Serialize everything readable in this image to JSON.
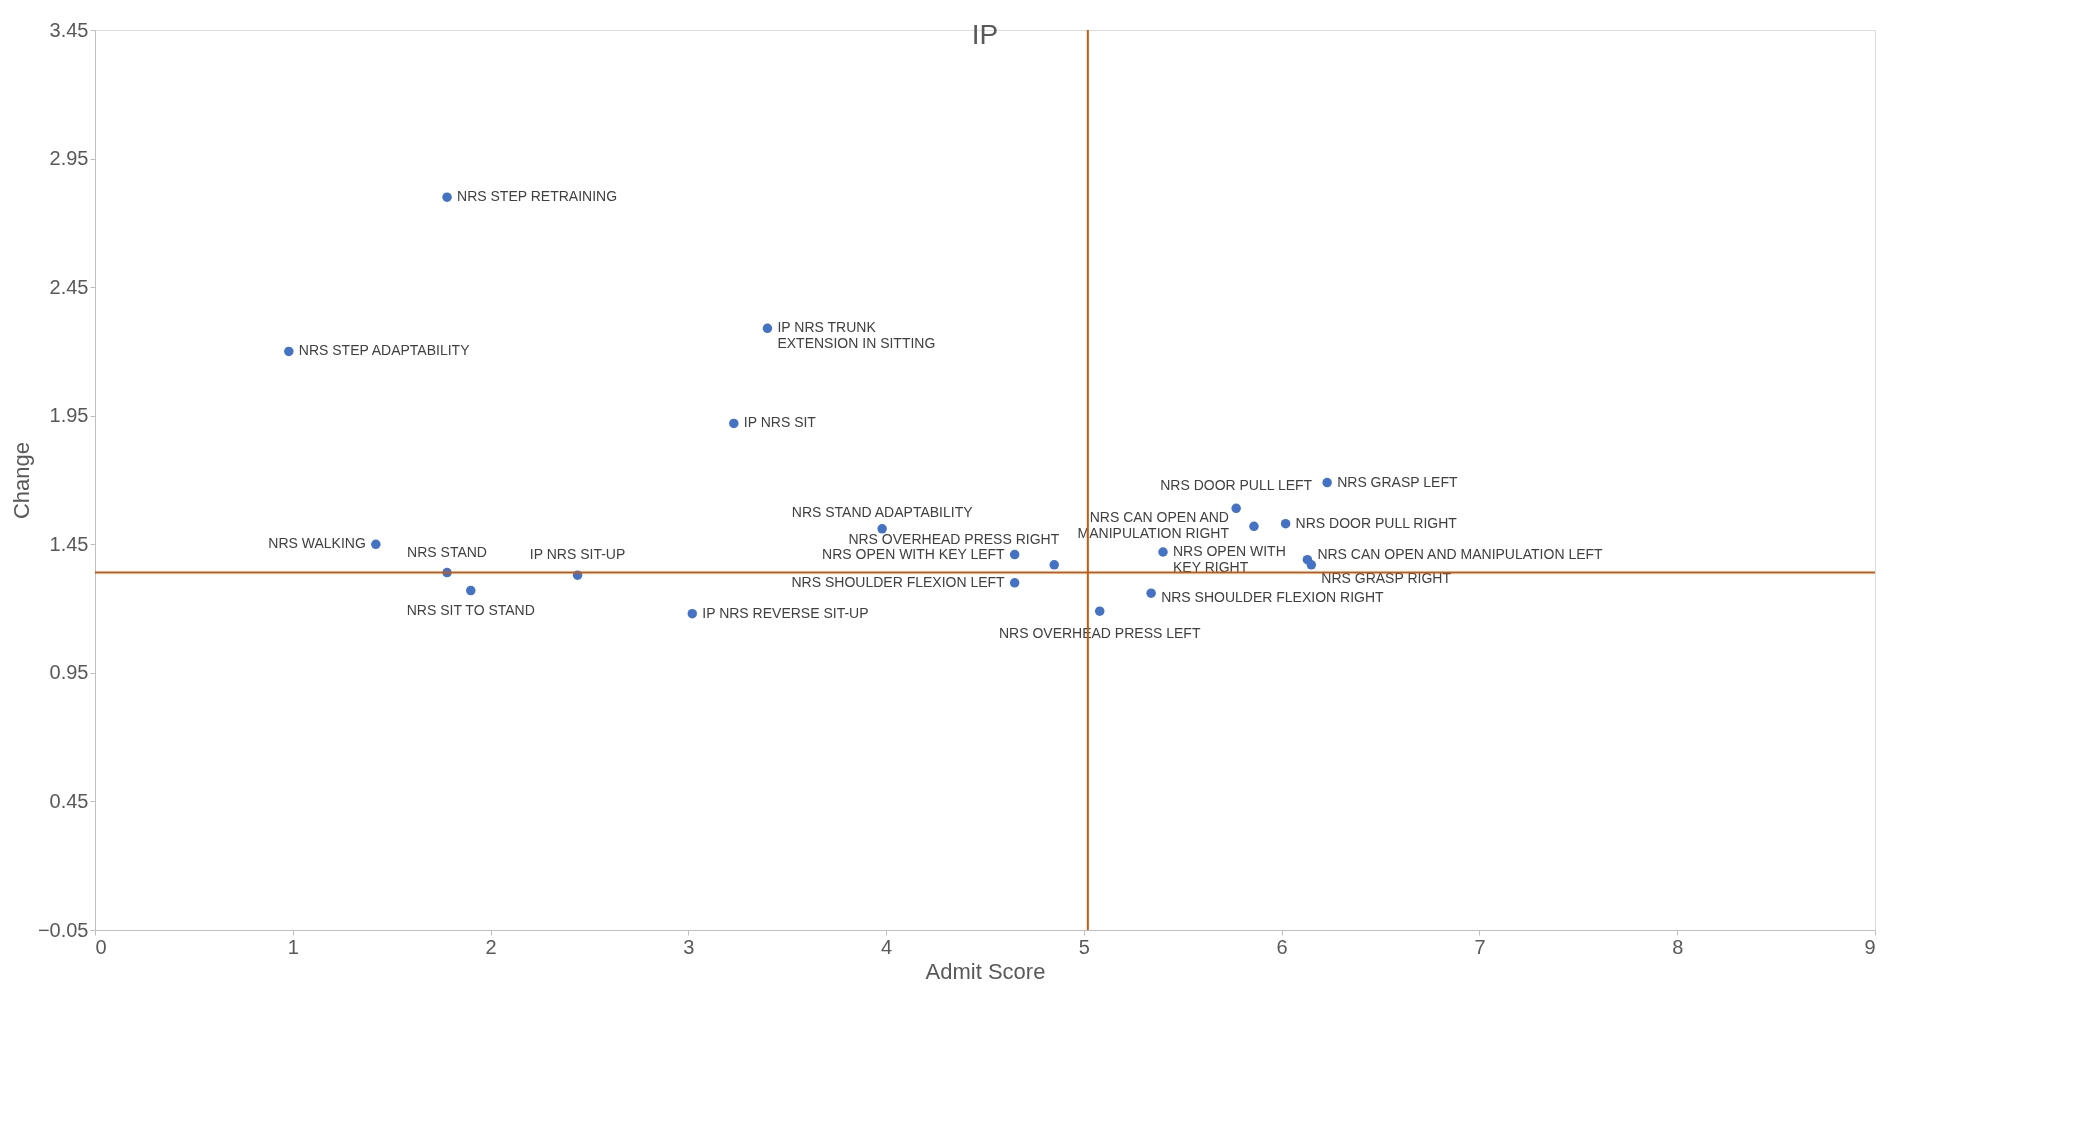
{
  "chart_data": {
    "type": "scatter",
    "title": "IP",
    "xlabel": "Admit Score",
    "ylabel": "Change",
    "xlim": [
      0,
      9
    ],
    "xticks": [
      0,
      1,
      2,
      3,
      4,
      5,
      6,
      7,
      8,
      9
    ],
    "ylim": [
      -0.05,
      3.45
    ],
    "yticks": [
      -0.05,
      0.45,
      0.95,
      1.45,
      1.95,
      2.45,
      2.95,
      3.45
    ],
    "grid": false,
    "marker": "circle",
    "series": [
      {
        "color": "#4472c4",
        "x": [
          1.78,
          0.98,
          3.4,
          3.23,
          1.42,
          1.78,
          1.9,
          2.44,
          3.02,
          3.98,
          4.65,
          4.85,
          4.65,
          5.4,
          5.08,
          5.34,
          5.77,
          5.86,
          6.02,
          6.13,
          6.15,
          6.23
        ],
        "values": [
          2.8,
          2.2,
          2.29,
          1.92,
          1.45,
          1.34,
          1.27,
          1.33,
          1.18,
          1.51,
          1.41,
          1.37,
          1.3,
          1.42,
          1.19,
          1.26,
          1.59,
          1.52,
          1.53,
          1.39,
          1.37,
          1.69
        ],
        "value_labels": [
          "NRS STEP RETRAINING",
          "NRS STEP ADAPTABILITY",
          "IP NRS TRUNK EXTENSION IN SITTING",
          "IP NRS SIT",
          "NRS WALKING",
          "NRS STAND",
          "NRS SIT TO STAND",
          "IP NRS SIT-UP",
          "IP NRS REVERSE SIT-UP",
          "NRS STAND ADAPTABILITY",
          "NRS OPEN WITH KEY LEFT",
          "NRS OVERHEAD PRESS RIGHT",
          "NRS SHOULDER FLEXION LEFT",
          "NRS OPEN WITH KEY RIGHT",
          "NRS OVERHEAD PRESS LEFT",
          "NRS SHOULDER FLEXION RIGHT",
          "NRS DOOR PULL LEFT",
          "NRS CAN OPEN AND MANIPULATION RIGHT",
          "NRS DOOR PULL RIGHT",
          "NRS CAN OPEN AND MANIPULATION LEFT",
          "NRS GRASP RIGHT",
          "NRS GRASP LEFT"
        ]
      }
    ],
    "ref_lines": [
      {
        "axis": "x",
        "value": 5.02,
        "color": "#c55a11"
      },
      {
        "axis": "y",
        "value": 1.34,
        "color": "#c55a11"
      }
    ]
  }
}
